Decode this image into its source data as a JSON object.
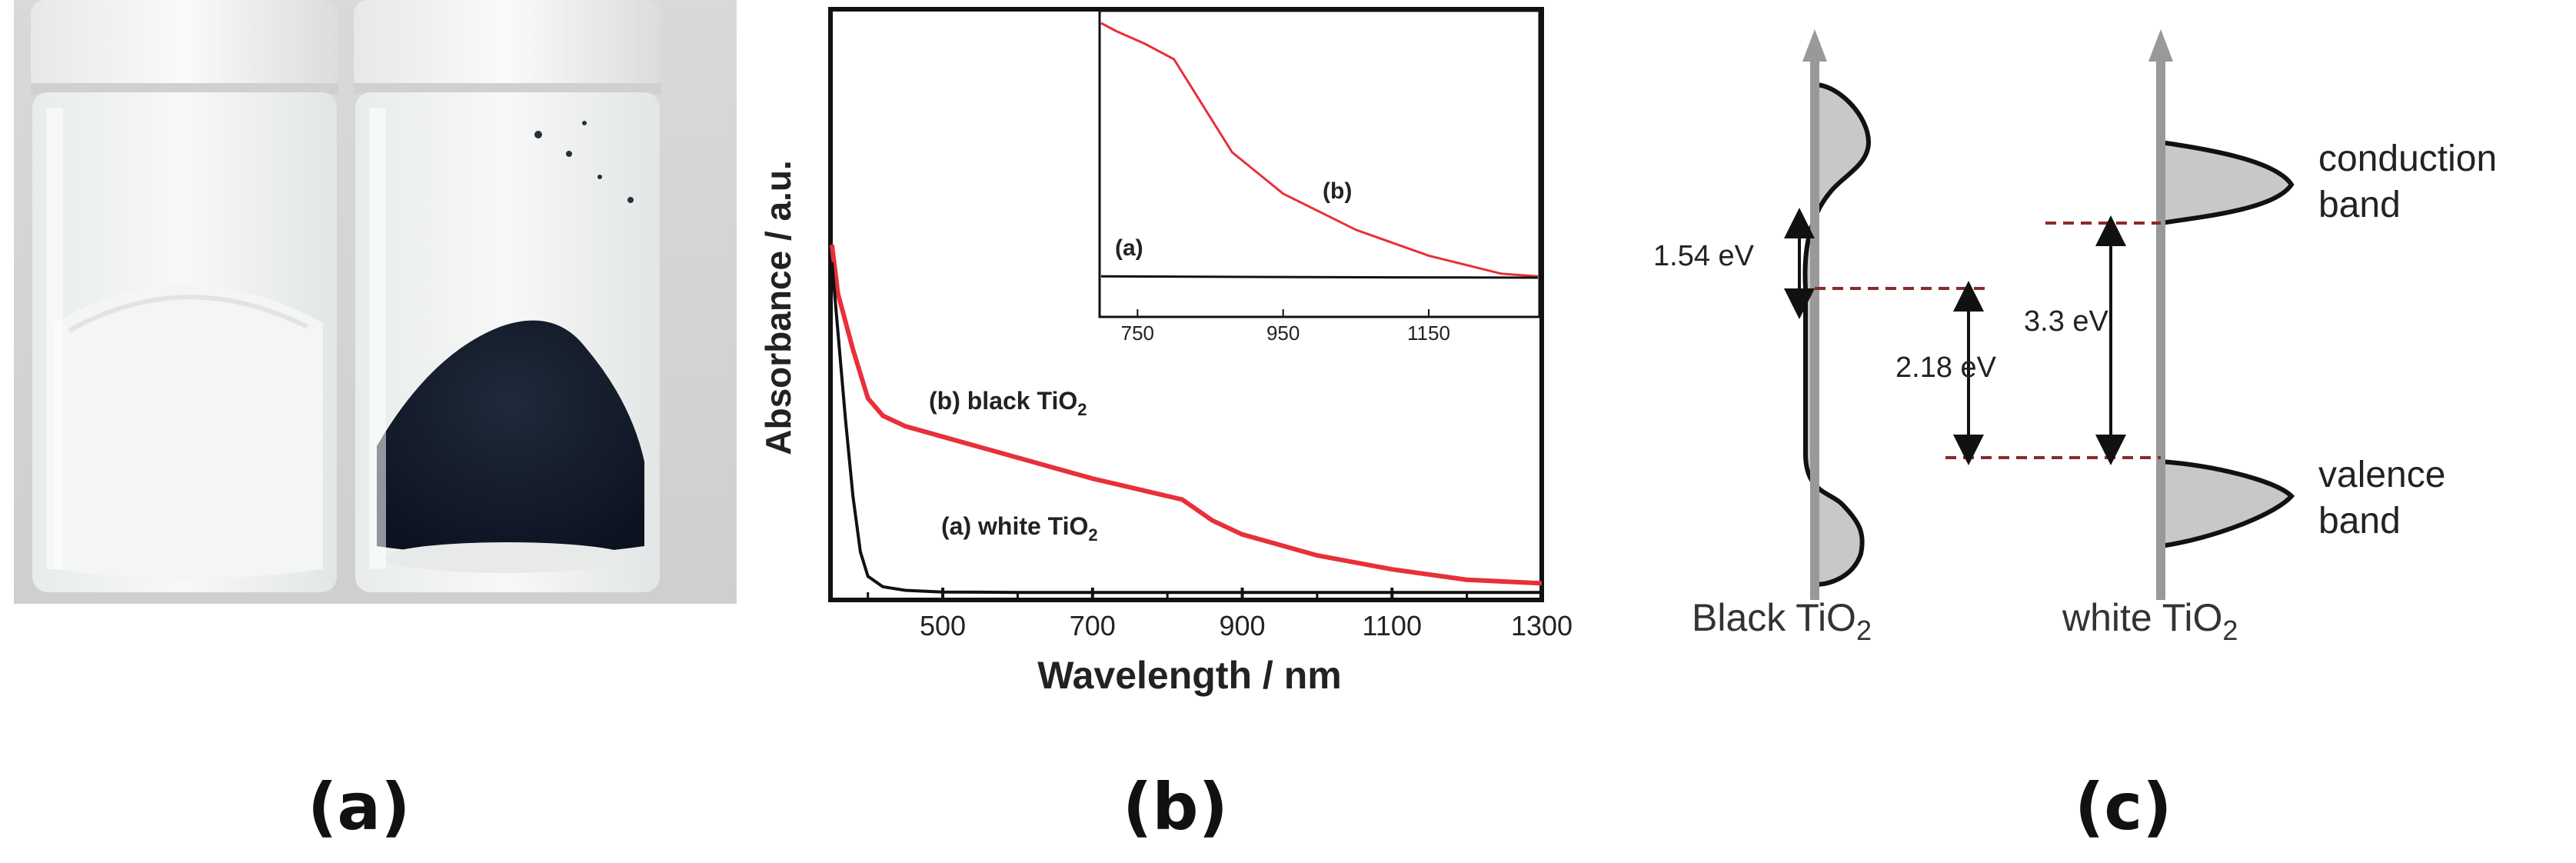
{
  "panels": {
    "a": {
      "label": "(a)"
    },
    "b": {
      "label": "(b)"
    },
    "c": {
      "label": "(c)"
    }
  },
  "chart_data": {
    "type": "line",
    "xlabel": "Wavelength / nm",
    "ylabel": "Absorbance / a.u.",
    "xlim": [
      350,
      1300
    ],
    "xticks": [
      "500",
      "700",
      "900",
      "1100",
      "1300"
    ],
    "series": [
      {
        "name": "(b) black TiO2",
        "label_prefix": "(b) black TiO",
        "label_sub": "2",
        "color": "#e8303a",
        "x": [
          352,
          360,
          380,
          400,
          420,
          450,
          500,
          600,
          700,
          780,
          820,
          860,
          900,
          1000,
          1100,
          1200,
          1300
        ],
        "y": [
          1.0,
          0.86,
          0.7,
          0.56,
          0.51,
          0.48,
          0.45,
          0.39,
          0.33,
          0.29,
          0.27,
          0.21,
          0.17,
          0.11,
          0.07,
          0.04,
          0.03
        ]
      },
      {
        "name": "(a) white TiO2",
        "label_prefix": "(a) white TiO",
        "label_sub": "2",
        "color": "#111111",
        "x": [
          352,
          360,
          370,
          380,
          390,
          400,
          420,
          450,
          500,
          600,
          800,
          1000,
          1300
        ],
        "y": [
          0.95,
          0.75,
          0.5,
          0.28,
          0.12,
          0.05,
          0.02,
          0.01,
          0.005,
          0.004,
          0.004,
          0.004,
          0.004
        ]
      }
    ],
    "inset": {
      "xlim": [
        700,
        1300
      ],
      "xticks": [
        "750",
        "950",
        "1150"
      ],
      "series": [
        {
          "name": "(b)",
          "color": "#e8303a",
          "x": [
            700,
            720,
            760,
            800,
            840,
            880,
            950,
            1050,
            1150,
            1250,
            1300
          ],
          "y": [
            1.0,
            0.97,
            0.92,
            0.86,
            0.68,
            0.5,
            0.34,
            0.2,
            0.1,
            0.03,
            0.02
          ]
        },
        {
          "name": "(a)",
          "color": "#111111",
          "x": [
            700,
            900,
            1100,
            1300
          ],
          "y": [
            0.02,
            0.018,
            0.016,
            0.015
          ]
        }
      ]
    }
  },
  "band_diagram": {
    "black": {
      "caption_prefix": "Black TiO",
      "caption_sub": "2",
      "gap_upper": "1.54 eV",
      "gap_lower": "2.18 eV"
    },
    "white": {
      "caption_prefix": "white TiO",
      "caption_sub": "2",
      "gap": "3.3 eV",
      "conduction_line1": "conduction",
      "conduction_line2": "band",
      "valence_line1": "valence",
      "valence_line2": "band"
    }
  }
}
